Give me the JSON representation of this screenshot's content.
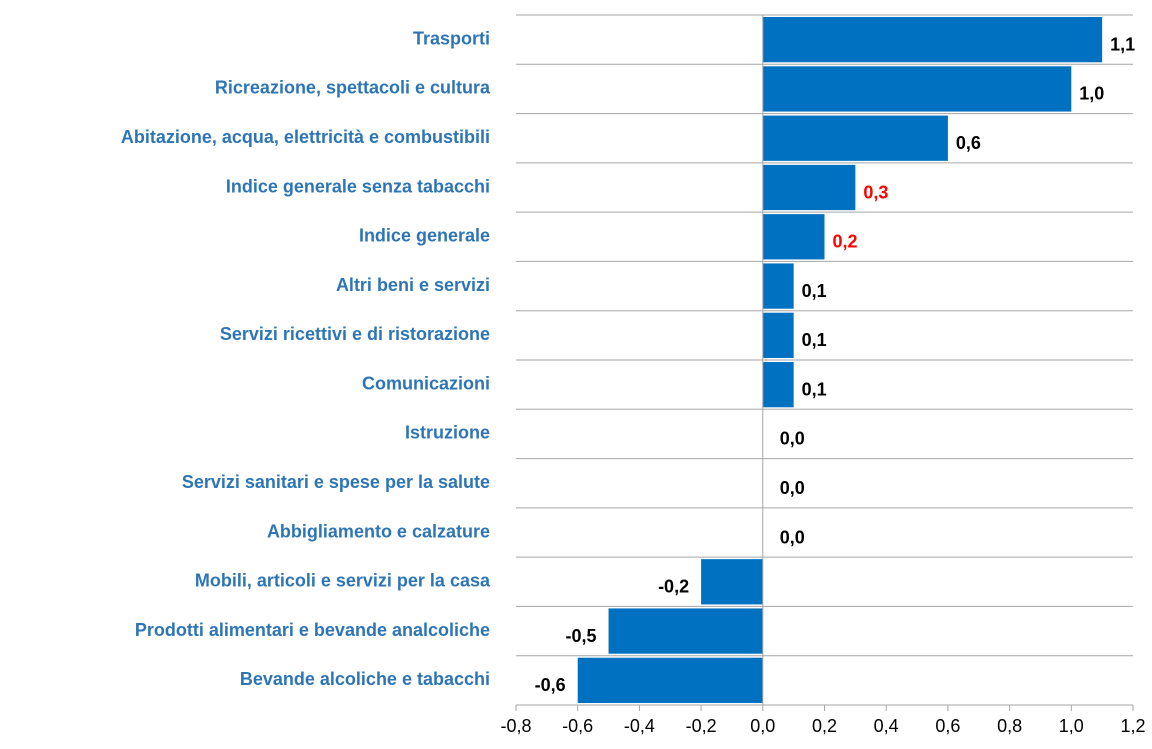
{
  "chart_data": {
    "type": "barh",
    "categories": [
      "Trasporti",
      "Ricreazione, spettacoli e cultura",
      "Abitazione, acqua, elettricità e combustibili",
      "Indice generale senza tabacchi",
      "Indice generale",
      "Altri beni e servizi",
      "Servizi ricettivi e di ristorazione",
      "Comunicazioni",
      "Istruzione",
      "Servizi sanitari e spese per la salute",
      "Abbigliamento e calzature",
      "Mobili, articoli e servizi per la casa",
      "Prodotti alimentari e bevande analcoliche",
      "Bevande alcoliche e tabacchi"
    ],
    "values": [
      1.1,
      1.0,
      0.6,
      0.3,
      0.2,
      0.1,
      0.1,
      0.1,
      0.0,
      0.0,
      0.0,
      -0.2,
      -0.5,
      -0.6
    ],
    "value_labels": [
      "1,1",
      "1,0",
      "0,6",
      "0,3",
      "0,2",
      "0,1",
      "0,1",
      "0,1",
      "0,0",
      "0,0",
      "0,0",
      "-0,2",
      "-0,5",
      "-0,6"
    ],
    "label_colors": [
      "#000000",
      "#000000",
      "#000000",
      "#ff0000",
      "#ff0000",
      "#000000",
      "#000000",
      "#000000",
      "#000000",
      "#000000",
      "#000000",
      "#000000",
      "#000000",
      "#000000"
    ],
    "color": "#0070c0",
    "category_color": "#2e75b6",
    "xlim": [
      -0.8,
      1.2
    ],
    "xticks": [
      {
        "value": -0.8,
        "label": "-0,8"
      },
      {
        "value": -0.6,
        "label": "-0,6"
      },
      {
        "value": -0.4,
        "label": "-0,4"
      },
      {
        "value": -0.2,
        "label": "-0,2"
      },
      {
        "value": 0.0,
        "label": "0,0"
      },
      {
        "value": 0.2,
        "label": "0,2"
      },
      {
        "value": 0.4,
        "label": "0,4"
      },
      {
        "value": 0.6,
        "label": "0,6"
      },
      {
        "value": 0.8,
        "label": "0,8"
      },
      {
        "value": 1.0,
        "label": "1,0"
      },
      {
        "value": 1.2,
        "label": "1,2"
      }
    ]
  }
}
